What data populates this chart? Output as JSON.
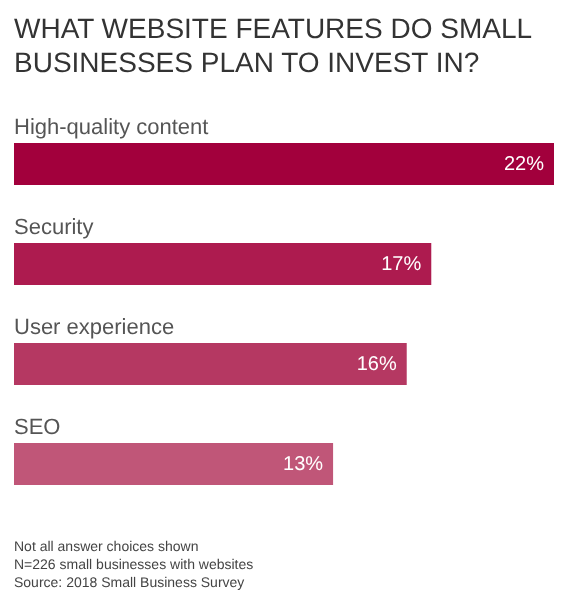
{
  "chart_data": {
    "type": "bar",
    "orientation": "horizontal",
    "title": [
      "WHAT WEBSITE FEATURES DO SMALL",
      "BUSINESSES PLAN TO INVEST IN?"
    ],
    "categories": [
      "High-quality content",
      "Security",
      "User experience",
      "SEO"
    ],
    "values": [
      22,
      17,
      16,
      13
    ],
    "value_labels": [
      "22%",
      "17%",
      "16%",
      "13%"
    ],
    "colors": [
      "#a2003c",
      "#ad1b4f",
      "#b53862",
      "#c05678"
    ],
    "annotations": [
      "Not all answer choices shown",
      "N=226 small businesses with websites",
      "Source: 2018 Small Business Survey"
    ]
  }
}
